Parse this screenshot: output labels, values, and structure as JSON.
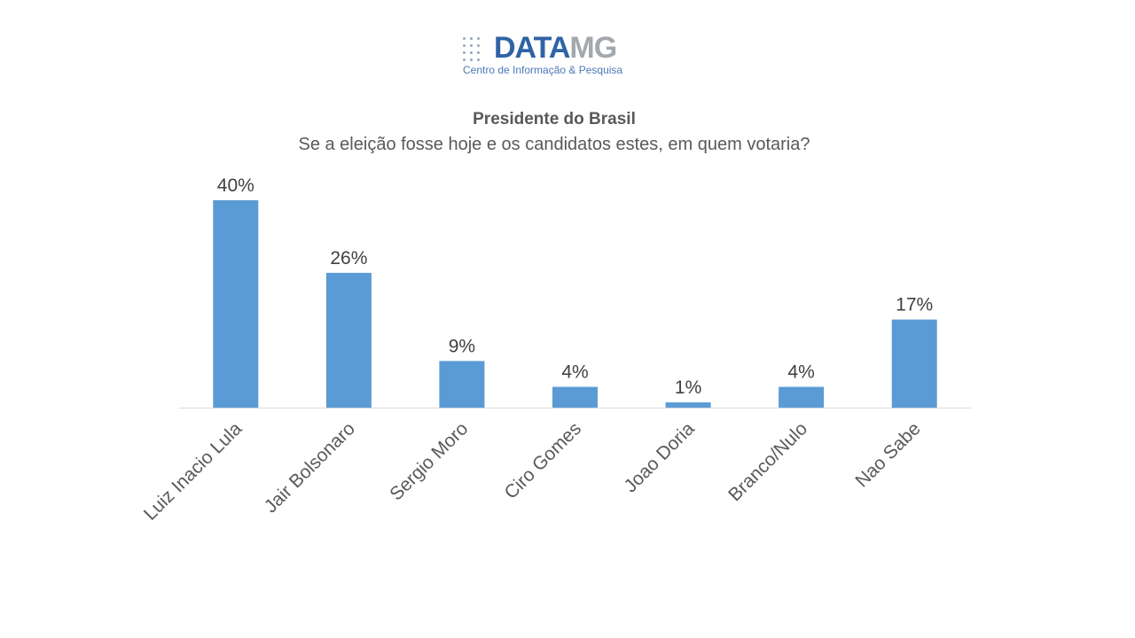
{
  "logo": {
    "word_a": "DATA",
    "word_b": "MG",
    "tagline": "Centro de Informação & Pesquisa"
  },
  "chart_data": {
    "type": "bar",
    "title": "Presidente do Brasil",
    "subtitle": "Se a eleição fosse hoje e os candidatos estes, em quem votaria?",
    "categories": [
      "Luiz Inacio Lula",
      "Jair Bolsonaro",
      "Sergio Moro",
      "Ciro Gomes",
      "Joao Doria",
      "Branco/Nulo",
      "Nao Sabe"
    ],
    "values": [
      40,
      26,
      9,
      4,
      1,
      4,
      17
    ],
    "value_labels": [
      "40%",
      "26%",
      "9%",
      "4%",
      "1%",
      "4%",
      "17%"
    ],
    "ylim": [
      0,
      40
    ],
    "grid": false,
    "legend": "none",
    "bar_color": "#5b9bd5"
  }
}
